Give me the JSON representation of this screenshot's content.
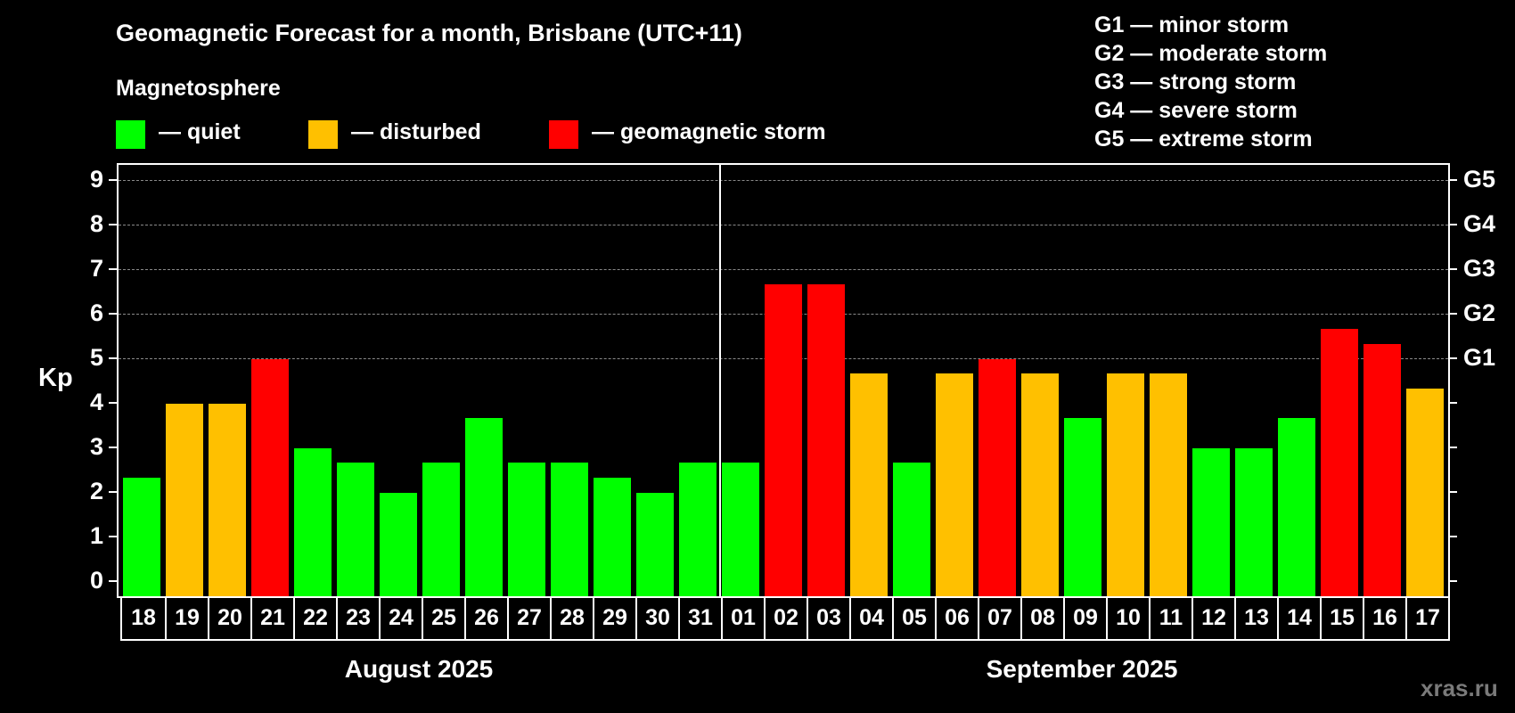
{
  "header": {
    "title": "Geomagnetic Forecast for a month, Brisbane (UTC+11)",
    "subtitle": "Magnetosphere"
  },
  "legend": {
    "items": [
      {
        "label": "— quiet",
        "color": "#00ff00"
      },
      {
        "label": "— disturbed",
        "color": "#ffc000"
      },
      {
        "label": "— geomagnetic storm",
        "color": "#ff0000"
      }
    ]
  },
  "storm_scale": [
    "G1 — minor storm",
    "G2 — moderate storm",
    "G3 — strong storm",
    "G4 — severe storm",
    "G5 — extreme storm"
  ],
  "axis": {
    "ylabel": "Kp",
    "yticks": [
      "0",
      "1",
      "2",
      "3",
      "4",
      "5",
      "6",
      "7",
      "8",
      "9"
    ],
    "right_labels": {
      "5": "G1",
      "6": "G2",
      "7": "G3",
      "8": "G4",
      "9": "G5"
    }
  },
  "months": {
    "august": "August 2025",
    "september": "September 2025"
  },
  "watermark": "xras.ru",
  "chart_data": {
    "type": "bar",
    "title": "Geomagnetic Forecast for a month, Brisbane (UTC+11)",
    "xlabel": "August 2025 / September 2025",
    "ylabel": "Kp",
    "ylim": [
      0,
      9
    ],
    "grid": true,
    "legend_position": "top",
    "categories": [
      "18",
      "19",
      "20",
      "21",
      "22",
      "23",
      "24",
      "25",
      "26",
      "27",
      "28",
      "29",
      "30",
      "31",
      "01",
      "02",
      "03",
      "04",
      "05",
      "06",
      "07",
      "08",
      "09",
      "10",
      "11",
      "12",
      "13",
      "14",
      "15",
      "16",
      "17"
    ],
    "values": [
      2.33,
      4,
      4,
      5,
      3,
      2.67,
      2,
      2.67,
      3.67,
      2.67,
      2.67,
      2.33,
      2,
      2.67,
      2.67,
      6.67,
      6.67,
      4.67,
      2.67,
      4.67,
      5,
      4.67,
      3.67,
      4.67,
      4.67,
      3,
      3,
      3.67,
      5.67,
      5.33,
      4.33
    ],
    "status": [
      "quiet",
      "disturbed",
      "disturbed",
      "storm",
      "quiet",
      "quiet",
      "quiet",
      "quiet",
      "quiet",
      "quiet",
      "quiet",
      "quiet",
      "quiet",
      "quiet",
      "quiet",
      "storm",
      "storm",
      "disturbed",
      "quiet",
      "disturbed",
      "storm",
      "disturbed",
      "quiet",
      "disturbed",
      "disturbed",
      "quiet",
      "quiet",
      "quiet",
      "storm",
      "storm",
      "disturbed"
    ],
    "status_colors": {
      "quiet": "#00ff00",
      "disturbed": "#ffc000",
      "storm": "#ff0000"
    },
    "right_axis": {
      "5": "G1",
      "6": "G2",
      "7": "G3",
      "8": "G4",
      "9": "G5"
    }
  }
}
